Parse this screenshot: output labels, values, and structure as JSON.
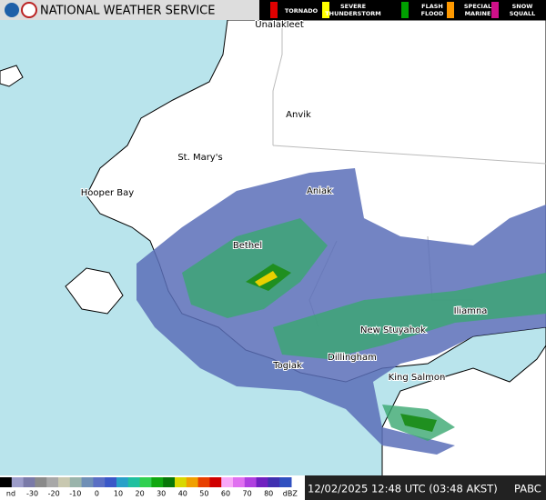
{
  "header": {
    "title": "NATIONAL WEATHER SERVICE"
  },
  "warnings": [
    {
      "lines": [
        "TORNADO"
      ]
    },
    {
      "lines": [
        "SEVERE",
        "THUNDERSTORM"
      ]
    },
    {
      "lines": [
        "FLASH",
        "FLOOD"
      ]
    },
    {
      "lines": [
        "SPECIAL",
        "MARINE"
      ]
    },
    {
      "lines": [
        "SNOW",
        "SQUALL"
      ]
    }
  ],
  "places": [
    "Unalakleet",
    "Anvik",
    "St. Mary's",
    "Hooper Bay",
    "Aniak",
    "Bethel",
    "Iliamna",
    "New Stuyahok",
    "Dillingham",
    "Togiak",
    "King Salmon"
  ],
  "scale": {
    "labels": [
      "nd",
      "-30",
      "-20",
      "-10",
      "0",
      "10",
      "20",
      "30",
      "40",
      "50",
      "60",
      "70",
      "80",
      "dBZ"
    ]
  },
  "footer": {
    "timestamp": "12/02/2025 12:48 UTC (03:48 AKST)",
    "station": "PABC"
  }
}
